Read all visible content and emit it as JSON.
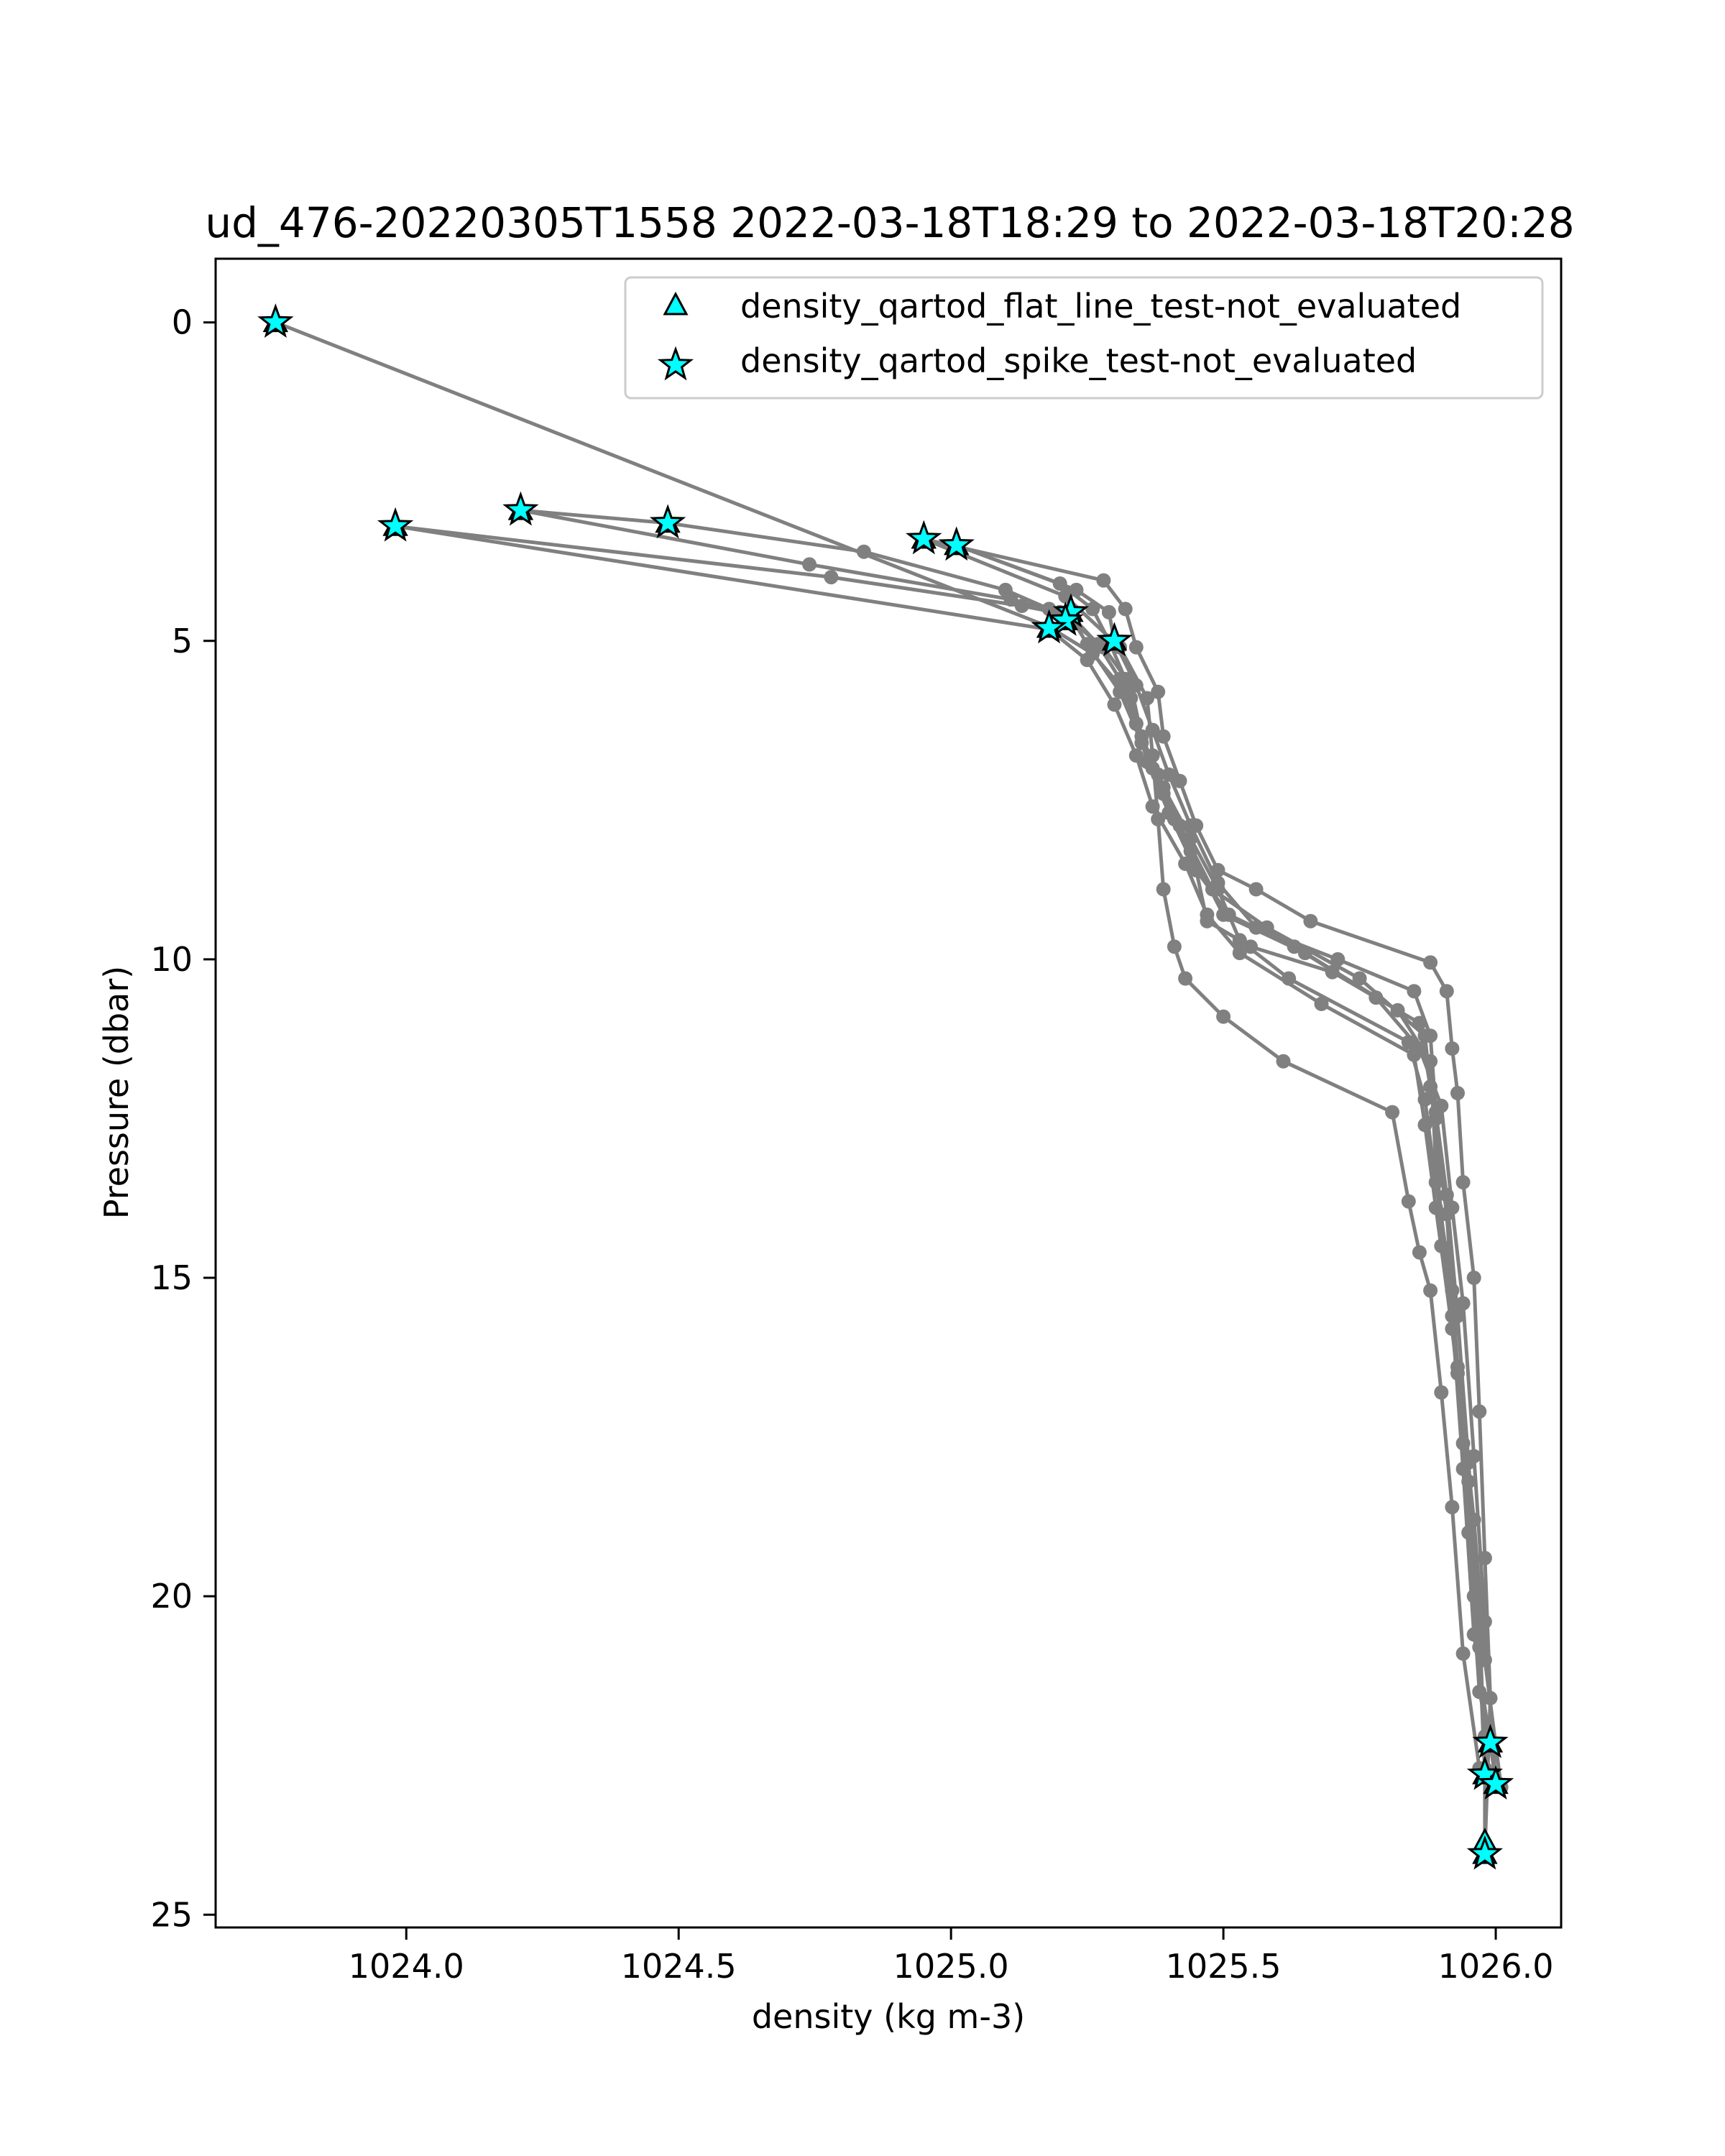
{
  "chart_data": {
    "type": "scatter",
    "title": "ud_476-20220305T1558 2022-03-18T18:29 to 2022-03-18T20:28",
    "xlabel": "density (kg m-3)",
    "ylabel": "Pressure (dbar)",
    "xlim": [
      1023.65,
      1026.12
    ],
    "ylim": [
      25.2,
      -1.0
    ],
    "y_inverted": true,
    "x_ticks": [
      1024.0,
      1024.5,
      1025.0,
      1025.5,
      1026.0
    ],
    "x_tick_labels": [
      "1024.0",
      "1024.5",
      "1025.0",
      "1025.5",
      "1026.0"
    ],
    "y_ticks": [
      0,
      5,
      10,
      15,
      20,
      25
    ],
    "y_tick_labels": [
      "0",
      "5",
      "10",
      "15",
      "20",
      "25"
    ],
    "grid": false,
    "legend_position": "top-right",
    "colors": {
      "profile_line": "#808080",
      "marker_fill": "#00ffff",
      "marker_edge": "#000000"
    },
    "legend": [
      {
        "label": "density_qartod_flat_line_test-not_evaluated",
        "marker": "triangle"
      },
      {
        "label": "density_qartod_spike_test-not_evaluated",
        "marker": "star"
      }
    ],
    "profiles": [
      {
        "points": [
          [
            1023.76,
            0.0
          ],
          [
            1025.18,
            4.78
          ],
          [
            1025.26,
            5.2
          ],
          [
            1025.33,
            5.9
          ],
          [
            1025.36,
            6.9
          ],
          [
            1025.4,
            7.7
          ],
          [
            1025.45,
            8.6
          ],
          [
            1025.47,
            9.4
          ],
          [
            1025.55,
            9.8
          ],
          [
            1025.7,
            10.2
          ],
          [
            1025.86,
            11.0
          ],
          [
            1025.89,
            12.5
          ],
          [
            1025.9,
            14.5
          ],
          [
            1025.93,
            16.5
          ],
          [
            1025.95,
            19.0
          ],
          [
            1025.97,
            21.5
          ],
          [
            1025.99,
            22.3
          ]
        ]
      },
      {
        "points": [
          [
            1024.21,
            2.95
          ],
          [
            1024.48,
            3.15
          ],
          [
            1024.84,
            3.6
          ],
          [
            1025.1,
            4.2
          ],
          [
            1025.18,
            4.5
          ],
          [
            1025.22,
            4.62
          ],
          [
            1025.25,
            5.05
          ],
          [
            1025.31,
            5.8
          ],
          [
            1025.35,
            6.6
          ],
          [
            1025.39,
            7.4
          ],
          [
            1025.44,
            8.3
          ],
          [
            1025.5,
            9.3
          ],
          [
            1025.65,
            9.9
          ],
          [
            1025.82,
            10.8
          ],
          [
            1025.88,
            11.6
          ],
          [
            1025.89,
            13.2
          ],
          [
            1025.92,
            15.6
          ],
          [
            1025.94,
            18.0
          ],
          [
            1025.96,
            20.6
          ],
          [
            1026.0,
            22.9
          ]
        ]
      },
      {
        "points": [
          [
            1023.98,
            3.2
          ],
          [
            1024.78,
            4.0
          ],
          [
            1025.13,
            4.45
          ],
          [
            1025.22,
            4.6
          ],
          [
            1025.27,
            5.05
          ],
          [
            1025.31,
            5.6
          ],
          [
            1025.34,
            6.3
          ],
          [
            1025.38,
            7.1
          ],
          [
            1025.42,
            7.9
          ],
          [
            1025.48,
            8.9
          ],
          [
            1025.58,
            9.5
          ],
          [
            1025.75,
            10.3
          ],
          [
            1025.87,
            11.2
          ],
          [
            1025.88,
            12.0
          ],
          [
            1025.91,
            14.0
          ],
          [
            1025.93,
            16.4
          ],
          [
            1025.96,
            18.8
          ],
          [
            1025.98,
            21.0
          ],
          [
            1026.01,
            23.0
          ]
        ]
      },
      {
        "points": [
          [
            1023.98,
            3.2
          ],
          [
            1025.18,
            4.82
          ],
          [
            1025.25,
            5.3
          ],
          [
            1025.3,
            6.0
          ],
          [
            1025.34,
            6.8
          ],
          [
            1025.37,
            7.6
          ],
          [
            1025.43,
            8.5
          ],
          [
            1025.47,
            9.3
          ],
          [
            1025.53,
            9.9
          ],
          [
            1025.68,
            10.7
          ],
          [
            1025.85,
            11.5
          ],
          [
            1025.87,
            12.6
          ],
          [
            1025.89,
            13.9
          ],
          [
            1025.92,
            15.8
          ],
          [
            1025.95,
            18.2
          ],
          [
            1025.97,
            20.8
          ],
          [
            1025.98,
            22.8
          ]
        ]
      },
      {
        "points": [
          [
            1024.21,
            2.95
          ],
          [
            1024.74,
            3.8
          ],
          [
            1025.11,
            4.35
          ],
          [
            1025.2,
            4.55
          ],
          [
            1025.28,
            5.1
          ],
          [
            1025.33,
            5.7
          ],
          [
            1025.35,
            6.5
          ],
          [
            1025.39,
            7.3
          ],
          [
            1025.44,
            8.1
          ],
          [
            1025.49,
            8.9
          ],
          [
            1025.53,
            9.7
          ],
          [
            1025.62,
            10.3
          ],
          [
            1025.84,
            11.3
          ],
          [
            1025.87,
            12.2
          ],
          [
            1025.89,
            13.5
          ],
          [
            1025.92,
            15.2
          ],
          [
            1025.94,
            17.6
          ],
          [
            1025.96,
            20.0
          ],
          [
            1025.98,
            22.2
          ],
          [
            1025.98,
            23.9
          ]
        ]
      },
      {
        "points": [
          [
            1024.95,
            3.4
          ],
          [
            1025.28,
            4.05
          ],
          [
            1025.32,
            4.5
          ],
          [
            1025.34,
            5.1
          ],
          [
            1025.38,
            5.8
          ],
          [
            1025.39,
            6.5
          ],
          [
            1025.42,
            7.2
          ],
          [
            1025.45,
            7.9
          ],
          [
            1025.49,
            8.6
          ],
          [
            1025.56,
            8.9
          ],
          [
            1025.66,
            9.4
          ],
          [
            1025.88,
            10.05
          ],
          [
            1025.91,
            10.5
          ],
          [
            1025.92,
            11.4
          ],
          [
            1025.93,
            12.1
          ],
          [
            1025.94,
            13.5
          ],
          [
            1025.96,
            15.0
          ],
          [
            1025.97,
            17.1
          ],
          [
            1025.98,
            19.4
          ],
          [
            1025.99,
            21.6
          ],
          [
            1025.98,
            24.0
          ]
        ]
      },
      {
        "points": [
          [
            1025.01,
            3.5
          ],
          [
            1025.23,
            4.2
          ],
          [
            1025.29,
            4.55
          ],
          [
            1025.3,
            5.0
          ],
          [
            1025.34,
            5.7
          ],
          [
            1025.37,
            6.4
          ],
          [
            1025.4,
            7.1
          ],
          [
            1025.44,
            7.9
          ],
          [
            1025.49,
            8.8
          ],
          [
            1025.56,
            9.5
          ],
          [
            1025.71,
            10.0
          ],
          [
            1025.85,
            10.5
          ],
          [
            1025.88,
            11.2
          ],
          [
            1025.89,
            12.4
          ],
          [
            1025.91,
            13.7
          ],
          [
            1025.93,
            15.6
          ],
          [
            1025.95,
            17.9
          ],
          [
            1025.97,
            20.3
          ],
          [
            1025.98,
            22.7
          ]
        ]
      },
      {
        "points": [
          [
            1025.01,
            3.5
          ],
          [
            1025.2,
            4.1
          ],
          [
            1025.26,
            4.5
          ],
          [
            1025.29,
            5.0
          ],
          [
            1025.32,
            5.6
          ],
          [
            1025.34,
            6.3
          ],
          [
            1025.37,
            7.0
          ],
          [
            1025.41,
            7.8
          ],
          [
            1025.45,
            8.6
          ],
          [
            1025.51,
            9.3
          ],
          [
            1025.63,
            9.8
          ],
          [
            1025.78,
            10.6
          ],
          [
            1025.86,
            11.4
          ],
          [
            1025.9,
            12.3
          ],
          [
            1025.92,
            13.9
          ],
          [
            1025.94,
            15.4
          ],
          [
            1025.96,
            17.8
          ],
          [
            1025.98,
            20.4
          ],
          [
            1026.0,
            22.95
          ]
        ]
      },
      {
        "points": [
          [
            1024.95,
            3.4
          ],
          [
            1025.21,
            4.3
          ],
          [
            1025.31,
            5.1
          ],
          [
            1025.36,
            5.9
          ],
          [
            1025.37,
            6.8
          ],
          [
            1025.38,
            7.8
          ],
          [
            1025.39,
            8.9
          ],
          [
            1025.41,
            9.8
          ],
          [
            1025.43,
            10.3
          ],
          [
            1025.5,
            10.9
          ],
          [
            1025.61,
            11.6
          ],
          [
            1025.81,
            12.4
          ],
          [
            1025.84,
            13.8
          ],
          [
            1025.86,
            14.6
          ],
          [
            1025.88,
            15.2
          ],
          [
            1025.9,
            16.8
          ],
          [
            1025.92,
            18.6
          ],
          [
            1025.94,
            20.9
          ],
          [
            1025.97,
            22.7
          ]
        ]
      }
    ],
    "spike_test_not_evaluated": [
      [
        1023.76,
        0.0
      ],
      [
        1024.21,
        2.95
      ],
      [
        1024.48,
        3.15
      ],
      [
        1023.98,
        3.2
      ],
      [
        1024.95,
        3.4
      ],
      [
        1025.01,
        3.5
      ],
      [
        1025.22,
        4.55
      ],
      [
        1025.21,
        4.68
      ],
      [
        1025.18,
        4.8
      ],
      [
        1025.3,
        5.0
      ],
      [
        1025.99,
        22.3
      ],
      [
        1025.98,
        22.8
      ],
      [
        1026.0,
        22.95
      ],
      [
        1025.98,
        24.05
      ]
    ],
    "flat_line_test_not_evaluated": [
      [
        1023.76,
        0.0
      ],
      [
        1024.21,
        2.95
      ],
      [
        1024.48,
        3.15
      ],
      [
        1023.98,
        3.2
      ],
      [
        1024.95,
        3.4
      ],
      [
        1025.01,
        3.5
      ],
      [
        1025.22,
        4.55
      ],
      [
        1025.21,
        4.68
      ],
      [
        1025.18,
        4.8
      ],
      [
        1025.3,
        5.0
      ],
      [
        1025.99,
        22.3
      ],
      [
        1025.98,
        22.8
      ],
      [
        1026.0,
        22.95
      ],
      [
        1025.98,
        23.85
      ],
      [
        1025.98,
        24.05
      ]
    ]
  }
}
